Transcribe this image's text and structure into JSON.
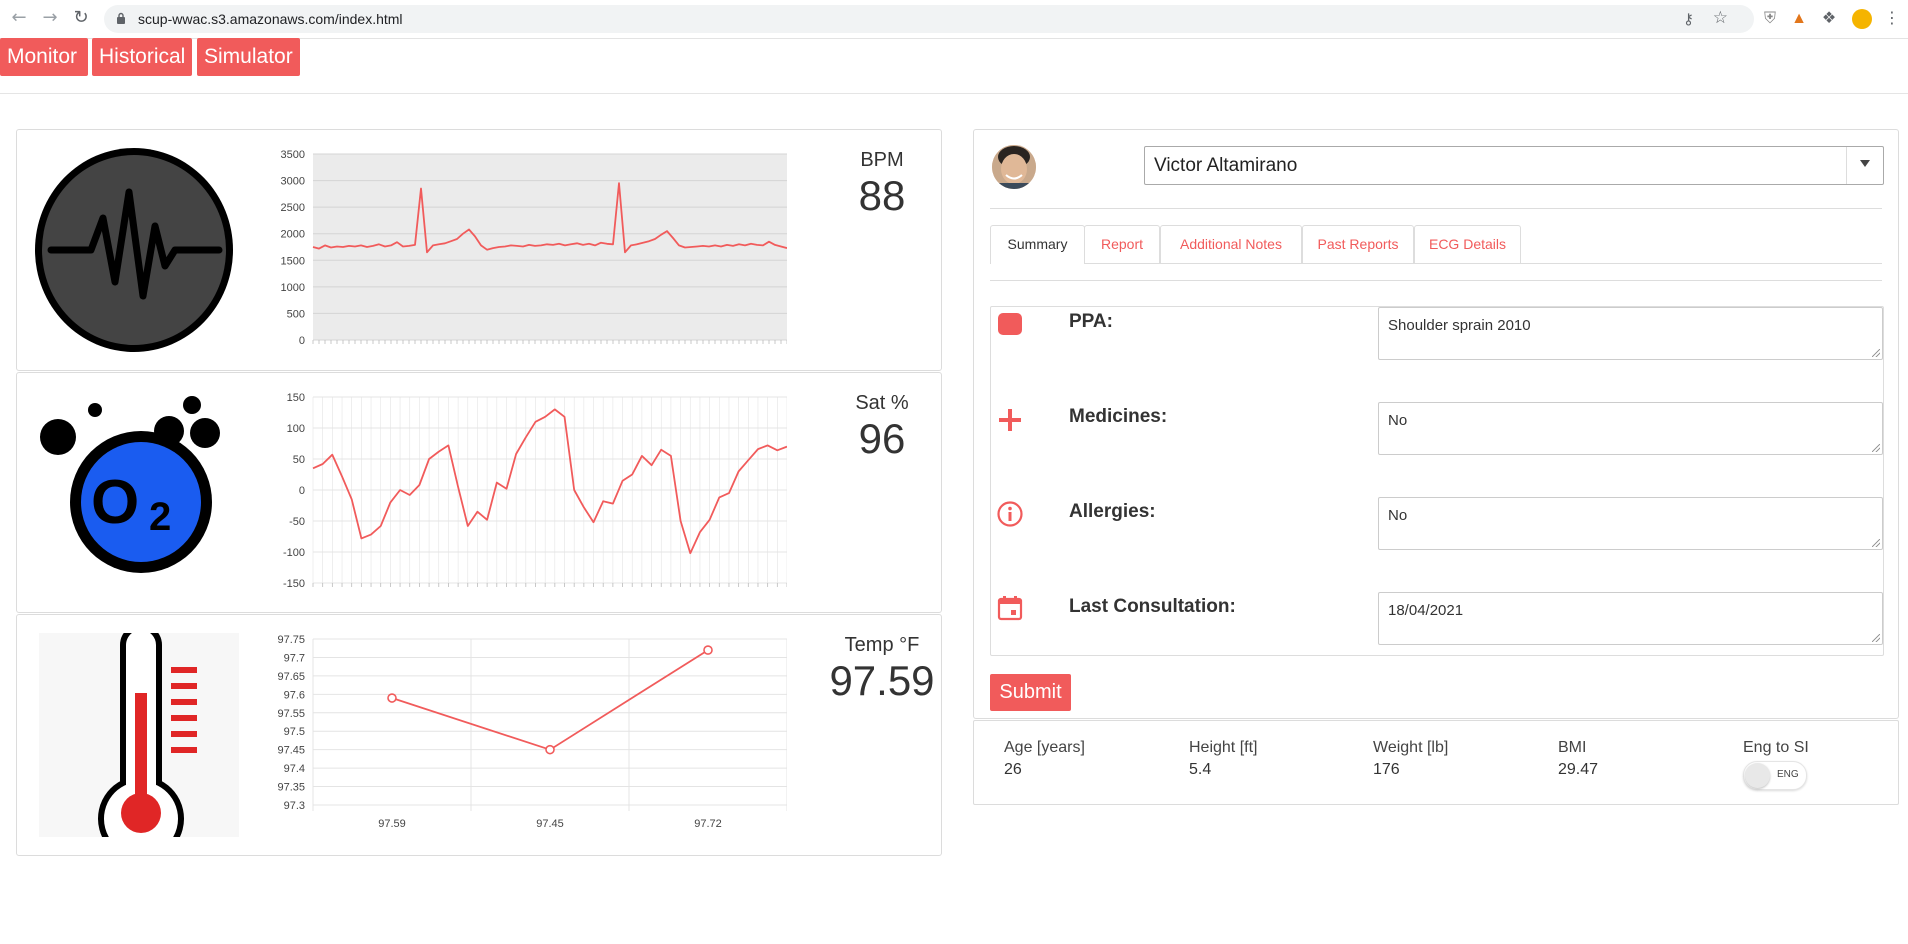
{
  "browser": {
    "url": "scup-wwac.s3.amazonaws.com/index.html"
  },
  "nav": {
    "items": [
      "Monitor",
      "Historical",
      "Simulator"
    ],
    "accent": "#f15b5b"
  },
  "metrics": [
    {
      "title": "BPM",
      "value": "88",
      "icon": "heartbeat-icon"
    },
    {
      "title": "Sat %",
      "value": "96",
      "icon": "oxygen-icon"
    },
    {
      "title": "Temp °F",
      "value": "97.59",
      "icon": "thermometer-icon"
    }
  ],
  "chart_data": [
    {
      "type": "line",
      "title": "",
      "ylim": [
        0,
        3500
      ],
      "yticks": [
        0,
        500,
        1000,
        1500,
        2000,
        2500,
        3000,
        3500
      ],
      "grid": true,
      "color": "#f15b5b",
      "series": [
        {
          "values": [
            1750,
            1720,
            1780,
            1740,
            1760,
            1750,
            1770,
            1760,
            1780,
            1750,
            1770,
            1800,
            1760,
            1780,
            1840,
            1760,
            1770,
            1790,
            2850,
            1650,
            1780,
            1800,
            1820,
            1860,
            1900,
            2000,
            2080,
            1950,
            1780,
            1700,
            1730,
            1750,
            1760,
            1780,
            1770,
            1760,
            1790,
            1770,
            1780,
            1800,
            1790,
            1810,
            1780,
            1800,
            1820,
            1790,
            1810,
            1780,
            1830,
            1810,
            1800,
            2950,
            1650,
            1780,
            1800,
            1830,
            1860,
            1900,
            1980,
            2050,
            1920,
            1780,
            1740,
            1750,
            1760,
            1770,
            1760,
            1780,
            1760,
            1790,
            1770,
            1800,
            1780,
            1810,
            1790,
            1780,
            1850,
            1790,
            1760,
            1730
          ]
        }
      ]
    },
    {
      "type": "line",
      "title": "",
      "ylim": [
        -150,
        150
      ],
      "yticks": [
        -150,
        -100,
        -50,
        0,
        50,
        100,
        150
      ],
      "grid": true,
      "color": "#f15b5b",
      "series": [
        {
          "values": [
            35,
            42,
            57,
            22,
            -15,
            -78,
            -72,
            -58,
            -20,
            0,
            -8,
            8,
            50,
            62,
            72,
            5,
            -58,
            -35,
            -48,
            12,
            2,
            58,
            85,
            110,
            118,
            130,
            118,
            0,
            -28,
            -52,
            -18,
            -22,
            15,
            25,
            55,
            40,
            65,
            55,
            -50,
            -102,
            -68,
            -48,
            -12,
            -5,
            30,
            48,
            66,
            72,
            64,
            70
          ]
        }
      ]
    },
    {
      "type": "line",
      "title": "",
      "categories": [
        "97.59",
        "97.45",
        "97.72"
      ],
      "values": [
        97.59,
        97.45,
        97.72
      ],
      "ylim": [
        97.3,
        97.75
      ],
      "yticks": [
        97.3,
        97.35,
        97.4,
        97.45,
        97.5,
        97.55,
        97.6,
        97.65,
        97.7,
        97.75
      ],
      "grid": true,
      "color": "#f15b5b"
    }
  ],
  "patient": {
    "name": "Victor Altamirano"
  },
  "tabs": [
    "Summary",
    "Report",
    "Additional Notes",
    "Past Reports",
    "ECG Details"
  ],
  "form": {
    "rows": [
      {
        "label": "PPA:",
        "value": "Shoulder sprain 2010",
        "icon": "square-icon"
      },
      {
        "label": "Medicines:",
        "value": "No",
        "icon": "plus-icon"
      },
      {
        "label": "Allergies:",
        "value": "No",
        "icon": "info-icon"
      },
      {
        "label": "Last Consultation:",
        "value": "18/04/2021",
        "icon": "calendar-icon"
      }
    ],
    "submit_label": "Submit"
  },
  "stats": [
    {
      "label": "Age [years]",
      "value": "26"
    },
    {
      "label": "Height [ft]",
      "value": "5.4"
    },
    {
      "label": "Weight [lb]",
      "value": "176"
    },
    {
      "label": "BMI",
      "value": "29.47"
    }
  ],
  "unit_toggle": {
    "label": "Eng to SI",
    "state": "ENG"
  }
}
